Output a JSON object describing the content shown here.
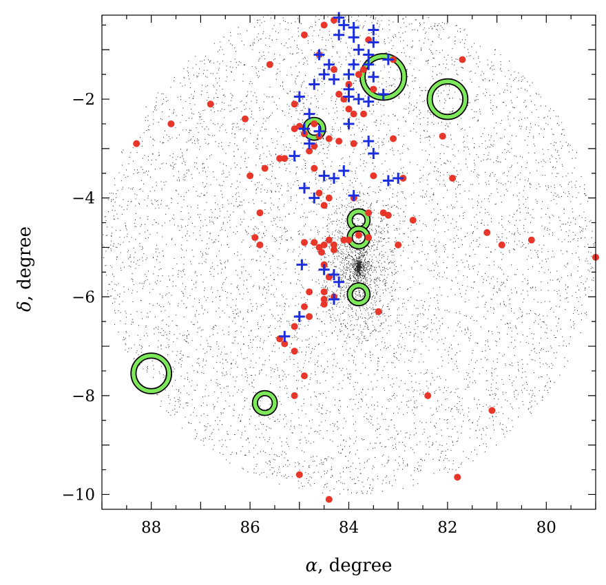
{
  "chart_data": {
    "type": "scatter",
    "title": "",
    "xlabel": {
      "symbol": "α",
      "text": ", degree"
    },
    "ylabel": {
      "symbol": "δ",
      "text": ", degree"
    },
    "xlim": [
      89,
      79
    ],
    "ylim": [
      -10.3,
      -0.3
    ],
    "x_reversed": true,
    "xticks": [
      {
        "value": 88,
        "label": "88"
      },
      {
        "value": 86,
        "label": "86"
      },
      {
        "value": 84,
        "label": "84"
      },
      {
        "value": 82,
        "label": "82"
      },
      {
        "value": 80,
        "label": "80"
      }
    ],
    "yticks": [
      {
        "value": -2,
        "label": "−2"
      },
      {
        "value": -4,
        "label": "−4"
      },
      {
        "value": -6,
        "label": "−6"
      },
      {
        "value": -8,
        "label": "−8"
      },
      {
        "value": -10,
        "label": "−10"
      }
    ],
    "minor_step": 0.5,
    "background_field": {
      "shape": "circle",
      "center": [
        84.0,
        -5.0
      ],
      "radius_deg": 5.0,
      "point_color": "#000000",
      "dense_cluster_center": [
        83.8,
        -5.4
      ]
    },
    "series": [
      {
        "marker": "circle",
        "color": "#e8372a",
        "points": [
          [
            84.3,
            -0.4
          ],
          [
            84.5,
            -0.5
          ],
          [
            84.9,
            -0.7
          ],
          [
            83.6,
            -0.8
          ],
          [
            84.6,
            -1.1
          ],
          [
            83.1,
            -1.2
          ],
          [
            81.7,
            -1.2
          ],
          [
            85.6,
            -1.3
          ],
          [
            84.3,
            -1.4
          ],
          [
            83.7,
            -1.4
          ],
          [
            83.8,
            -1.5
          ],
          [
            84.0,
            -1.7
          ],
          [
            83.5,
            -1.8
          ],
          [
            84.2,
            -1.9
          ],
          [
            84.1,
            -2.0
          ],
          [
            85.1,
            -2.1
          ],
          [
            86.8,
            -2.1
          ],
          [
            84.0,
            -2.2
          ],
          [
            83.9,
            -2.3
          ],
          [
            83.7,
            -2.3
          ],
          [
            86.1,
            -2.4
          ],
          [
            84.7,
            -2.5
          ],
          [
            85.0,
            -2.55
          ],
          [
            87.6,
            -2.5
          ],
          [
            85.1,
            -2.6
          ],
          [
            84.9,
            -2.7
          ],
          [
            84.6,
            -2.75
          ],
          [
            84.4,
            -2.8
          ],
          [
            82.1,
            -2.75
          ],
          [
            83.1,
            -2.8
          ],
          [
            84.2,
            -2.85
          ],
          [
            83.9,
            -2.9
          ],
          [
            84.7,
            -2.95
          ],
          [
            88.3,
            -2.9
          ],
          [
            84.8,
            -3.05
          ],
          [
            85.3,
            -3.2
          ],
          [
            85.4,
            -3.2
          ],
          [
            84.7,
            -3.4
          ],
          [
            85.7,
            -3.4
          ],
          [
            86.0,
            -3.55
          ],
          [
            83.5,
            -3.55
          ],
          [
            82.9,
            -3.6
          ],
          [
            81.9,
            -3.6
          ],
          [
            84.6,
            -3.9
          ],
          [
            84.4,
            -4.0
          ],
          [
            83.9,
            -4.0
          ],
          [
            84.5,
            -4.15
          ],
          [
            83.3,
            -4.3
          ],
          [
            83.2,
            -4.35
          ],
          [
            82.7,
            -4.45
          ],
          [
            85.8,
            -4.3
          ],
          [
            83.6,
            -4.3
          ],
          [
            81.2,
            -4.7
          ],
          [
            83.8,
            -4.75
          ],
          [
            84.9,
            -4.9
          ],
          [
            85.9,
            -4.8
          ],
          [
            84.4,
            -4.85
          ],
          [
            84.1,
            -4.85
          ],
          [
            84.5,
            -4.95
          ],
          [
            84.3,
            -4.95
          ],
          [
            84.0,
            -4.85
          ],
          [
            83.6,
            -4.8
          ],
          [
            85.8,
            -4.95
          ],
          [
            83.0,
            -4.95
          ],
          [
            84.7,
            -4.9
          ],
          [
            84.6,
            -5.0
          ],
          [
            84.3,
            -5.05
          ],
          [
            84.55,
            -5.1
          ],
          [
            80.9,
            -4.95
          ],
          [
            80.3,
            -4.85
          ],
          [
            79.0,
            -5.2
          ],
          [
            84.5,
            -5.35
          ],
          [
            84.4,
            -5.6
          ],
          [
            84.5,
            -5.9
          ],
          [
            84.8,
            -5.9
          ],
          [
            84.3,
            -6.0
          ],
          [
            84.5,
            -6.05
          ],
          [
            84.5,
            -6.15
          ],
          [
            84.9,
            -6.2
          ],
          [
            83.4,
            -6.3
          ],
          [
            84.8,
            -6.4
          ],
          [
            85.1,
            -6.6
          ],
          [
            85.4,
            -6.85
          ],
          [
            85.3,
            -6.95
          ],
          [
            85.1,
            -7.1
          ],
          [
            84.9,
            -7.6
          ],
          [
            85.1,
            -8.0
          ],
          [
            82.4,
            -8.0
          ],
          [
            81.1,
            -8.3
          ],
          [
            85.0,
            -9.6
          ],
          [
            81.8,
            -9.65
          ],
          [
            84.4,
            -10.1
          ]
        ]
      },
      {
        "marker": "plus",
        "color": "#1a2ee0",
        "points": [
          [
            84.2,
            -0.35
          ],
          [
            84.1,
            -0.5
          ],
          [
            83.9,
            -0.55
          ],
          [
            83.5,
            -0.6
          ],
          [
            84.2,
            -0.7
          ],
          [
            83.9,
            -0.75
          ],
          [
            83.5,
            -0.85
          ],
          [
            84.6,
            -1.1
          ],
          [
            83.8,
            -1.0
          ],
          [
            83.6,
            -1.1
          ],
          [
            83.2,
            -1.2
          ],
          [
            84.4,
            -1.3
          ],
          [
            83.9,
            -1.3
          ],
          [
            83.6,
            -1.3
          ],
          [
            84.5,
            -1.5
          ],
          [
            84.0,
            -1.5
          ],
          [
            83.5,
            -1.55
          ],
          [
            84.3,
            -1.6
          ],
          [
            84.7,
            -1.7
          ],
          [
            84.0,
            -1.8
          ],
          [
            83.3,
            -1.9
          ],
          [
            84.0,
            -1.95
          ],
          [
            83.8,
            -2.0
          ],
          [
            83.6,
            -2.05
          ],
          [
            85.0,
            -1.95
          ],
          [
            84.8,
            -2.3
          ],
          [
            84.0,
            -2.5
          ],
          [
            84.9,
            -2.6
          ],
          [
            84.6,
            -2.65
          ],
          [
            84.8,
            -2.9
          ],
          [
            83.6,
            -2.85
          ],
          [
            83.5,
            -3.1
          ],
          [
            85.1,
            -3.15
          ],
          [
            84.1,
            -3.45
          ],
          [
            84.5,
            -3.55
          ],
          [
            84.3,
            -3.6
          ],
          [
            83.2,
            -3.65
          ],
          [
            83.0,
            -3.6
          ],
          [
            84.9,
            -3.8
          ],
          [
            84.7,
            -4.0
          ],
          [
            83.9,
            -3.95
          ],
          [
            84.95,
            -5.35
          ],
          [
            84.5,
            -5.45
          ],
          [
            84.3,
            -5.55
          ],
          [
            84.2,
            -5.7
          ],
          [
            85.0,
            -6.4
          ],
          [
            84.3,
            -6.05
          ],
          [
            85.3,
            -6.8
          ]
        ]
      },
      {
        "marker": "ring",
        "color": "#7ce85a",
        "points": [
          [
            83.3,
            -1.55,
            0.42
          ],
          [
            82.0,
            -2.0,
            0.36
          ],
          [
            84.7,
            -2.6,
            0.18
          ],
          [
            83.8,
            -4.45,
            0.18
          ],
          [
            83.8,
            -4.8,
            0.18
          ],
          [
            83.8,
            -5.95,
            0.18
          ],
          [
            88.0,
            -7.55,
            0.36
          ],
          [
            85.7,
            -8.15,
            0.2
          ]
        ]
      }
    ]
  }
}
